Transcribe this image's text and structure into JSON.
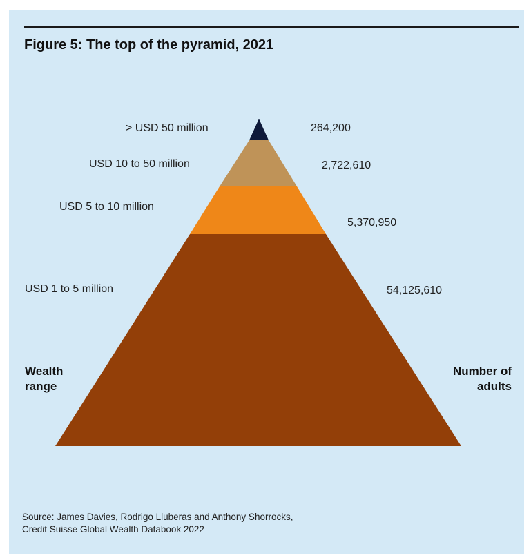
{
  "title": "Figure 5: The top of the pyramid, 2021",
  "axis": {
    "left_line1": "Wealth",
    "left_line2": "range",
    "right_line1": "Number of",
    "right_line2": "adults"
  },
  "tiers": [
    {
      "range": "> USD 50 million",
      "adults": "264,200",
      "color": "#0e1a3a"
    },
    {
      "range": "USD 10 to 50 million",
      "adults": "2,722,610",
      "color": "#bf9358"
    },
    {
      "range": "USD 5 to 10 million",
      "adults": "5,370,950",
      "color": "#ef8718"
    },
    {
      "range": "USD 1 to 5 million",
      "adults": "54,125,610",
      "color": "#933f08"
    }
  ],
  "source": {
    "line1": "Source: James Davies, Rodrigo Lluberas and Anthony Shorrocks,",
    "line2": "Credit Suisse Global Wealth Databook 2022"
  },
  "colors": {
    "background": "#d4e9f6"
  }
}
